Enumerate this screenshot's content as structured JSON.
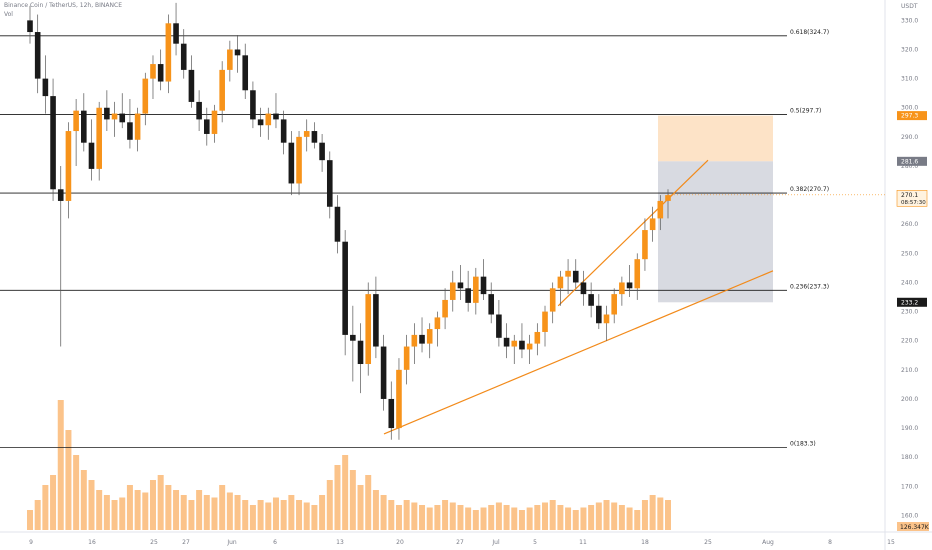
{
  "header": {
    "title": "Binance Coin / TetherUS, 12h, BINANCE",
    "volume_label": "Vol"
  },
  "axis": {
    "unit": "USDT"
  },
  "colors": {
    "up": "#f7931a",
    "down": "#1a1a1a",
    "volume": "#fbc38a",
    "channel": "#f28a1a",
    "profit_zone": "#fde3c7",
    "loss_zone": "#d1d4dc"
  },
  "chart_data": {
    "type": "candlestick",
    "y_range": [
      155,
      337
    ],
    "y_ticks": [
      330,
      320,
      310,
      300,
      290,
      280,
      270,
      260,
      250,
      240,
      230,
      220,
      210,
      200,
      190,
      180,
      170,
      160
    ],
    "x_ticks": [
      "9",
      "16",
      "25",
      "27",
      "Jun",
      "6",
      "13",
      "20",
      "27",
      "Jul",
      "5",
      "11",
      "18",
      "25",
      "Aug",
      "8",
      "15"
    ],
    "fib_levels": [
      {
        "label": "0.618(324.7)",
        "value": 324.7
      },
      {
        "label": "0.5(297.7)",
        "value": 297.7
      },
      {
        "label": "0.382(270.7)",
        "value": 270.7
      },
      {
        "label": "0.236(237.3)",
        "value": 237.3
      },
      {
        "label": "0(183.3)",
        "value": 183.3
      }
    ],
    "price_badges": [
      {
        "label": "297.3",
        "value": 297.3,
        "color": "#f7931a"
      },
      {
        "label": "281.6",
        "value": 281.6,
        "color": "#787b86"
      },
      {
        "label": "270.1",
        "sublabel": "08:57:30",
        "value": 270.1,
        "color": "#fff3e0"
      },
      {
        "label": "233.2",
        "value": 233.2,
        "color": "#1a1a1a"
      }
    ],
    "volume_label": "126.347K",
    "position_box": {
      "entry": 281.6,
      "target": 297.3,
      "stop": 233.2
    },
    "channel": {
      "upper": [
        [
          0,
          232
        ],
        [
          1,
          282
        ]
      ],
      "lower": [
        [
          0,
          188
        ],
        [
          1,
          244
        ]
      ]
    },
    "candles": [
      [
        330,
        335,
        322,
        326
      ],
      [
        326,
        332,
        305,
        310
      ],
      [
        310,
        318,
        298,
        304
      ],
      [
        304,
        310,
        268,
        272
      ],
      [
        272,
        280,
        218,
        268
      ],
      [
        268,
        295,
        262,
        292
      ],
      [
        292,
        303,
        280,
        299
      ],
      [
        299,
        305,
        285,
        288
      ],
      [
        288,
        296,
        275,
        279
      ],
      [
        279,
        302,
        275,
        300
      ],
      [
        300,
        306,
        292,
        296
      ],
      [
        296,
        302,
        290,
        298
      ],
      [
        298,
        305,
        293,
        295
      ],
      [
        295,
        303,
        286,
        289
      ],
      [
        289,
        300,
        285,
        298
      ],
      [
        298,
        312,
        294,
        310
      ],
      [
        310,
        318,
        303,
        315
      ],
      [
        315,
        320,
        306,
        309
      ],
      [
        309,
        332,
        305,
        329
      ],
      [
        329,
        336,
        318,
        322
      ],
      [
        322,
        327,
        310,
        313
      ],
      [
        313,
        318,
        300,
        302
      ],
      [
        302,
        306,
        292,
        296
      ],
      [
        296,
        300,
        287,
        291
      ],
      [
        291,
        301,
        288,
        299
      ],
      [
        299,
        316,
        295,
        313
      ],
      [
        313,
        323,
        309,
        320
      ],
      [
        320,
        325,
        312,
        318
      ],
      [
        318,
        322,
        303,
        306
      ],
      [
        306,
        309,
        293,
        296
      ],
      [
        296,
        300,
        290,
        294
      ],
      [
        294,
        300,
        289,
        298
      ],
      [
        298,
        305,
        293,
        296
      ],
      [
        296,
        299,
        284,
        288
      ],
      [
        288,
        292,
        270,
        274
      ],
      [
        274,
        292,
        270,
        290
      ],
      [
        290,
        296,
        285,
        292
      ],
      [
        292,
        295,
        286,
        288
      ],
      [
        288,
        291,
        278,
        282
      ],
      [
        282,
        285,
        262,
        266
      ],
      [
        266,
        270,
        250,
        254
      ],
      [
        254,
        258,
        215,
        222
      ],
      [
        222,
        232,
        206,
        220
      ],
      [
        220,
        226,
        202,
        212
      ],
      [
        212,
        240,
        208,
        236
      ],
      [
        236,
        242,
        214,
        218
      ],
      [
        218,
        222,
        196,
        200
      ],
      [
        200,
        206,
        186,
        190
      ],
      [
        190,
        214,
        186,
        210
      ],
      [
        210,
        222,
        205,
        218
      ],
      [
        218,
        226,
        212,
        222
      ],
      [
        222,
        228,
        216,
        219
      ],
      [
        219,
        226,
        214,
        224
      ],
      [
        224,
        230,
        218,
        228
      ],
      [
        228,
        238,
        224,
        234
      ],
      [
        234,
        244,
        230,
        240
      ],
      [
        240,
        246,
        234,
        238
      ],
      [
        238,
        244,
        230,
        233
      ],
      [
        233,
        245,
        229,
        242
      ],
      [
        242,
        248,
        234,
        236
      ],
      [
        236,
        240,
        226,
        229
      ],
      [
        229,
        234,
        218,
        221
      ],
      [
        221,
        226,
        214,
        218
      ],
      [
        218,
        222,
        212,
        220
      ],
      [
        220,
        226,
        214,
        217
      ],
      [
        217,
        222,
        212,
        219
      ],
      [
        219,
        226,
        215,
        223
      ],
      [
        223,
        232,
        218,
        230
      ],
      [
        230,
        240,
        226,
        238
      ],
      [
        238,
        244,
        232,
        242
      ],
      [
        242,
        248,
        236,
        244
      ],
      [
        244,
        248,
        238,
        240
      ],
      [
        240,
        244,
        232,
        236
      ],
      [
        236,
        240,
        228,
        232
      ],
      [
        232,
        236,
        224,
        226
      ],
      [
        226,
        232,
        220,
        229
      ],
      [
        229,
        238,
        226,
        236
      ],
      [
        236,
        242,
        232,
        240
      ],
      [
        240,
        246,
        235,
        238
      ],
      [
        238,
        250,
        234,
        248
      ],
      [
        248,
        262,
        244,
        258
      ],
      [
        258,
        266,
        254,
        262
      ],
      [
        262,
        270,
        258,
        268
      ],
      [
        268,
        272,
        262,
        270
      ]
    ],
    "volume": [
      8,
      12,
      18,
      22,
      52,
      40,
      30,
      24,
      20,
      16,
      14,
      12,
      13,
      18,
      16,
      15,
      20,
      22,
      18,
      16,
      14,
      12,
      16,
      14,
      13,
      18,
      15,
      14,
      12,
      10,
      12,
      11,
      13,
      12,
      14,
      12,
      11,
      10,
      14,
      20,
      26,
      30,
      24,
      18,
      22,
      16,
      14,
      12,
      10,
      12,
      11,
      10,
      9,
      10,
      12,
      11,
      10,
      9,
      8,
      9,
      10,
      11,
      10,
      9,
      8,
      9,
      10,
      11,
      12,
      10,
      9,
      8,
      9,
      10,
      11,
      12,
      11,
      10,
      9,
      8,
      12,
      14,
      13,
      12
    ]
  }
}
